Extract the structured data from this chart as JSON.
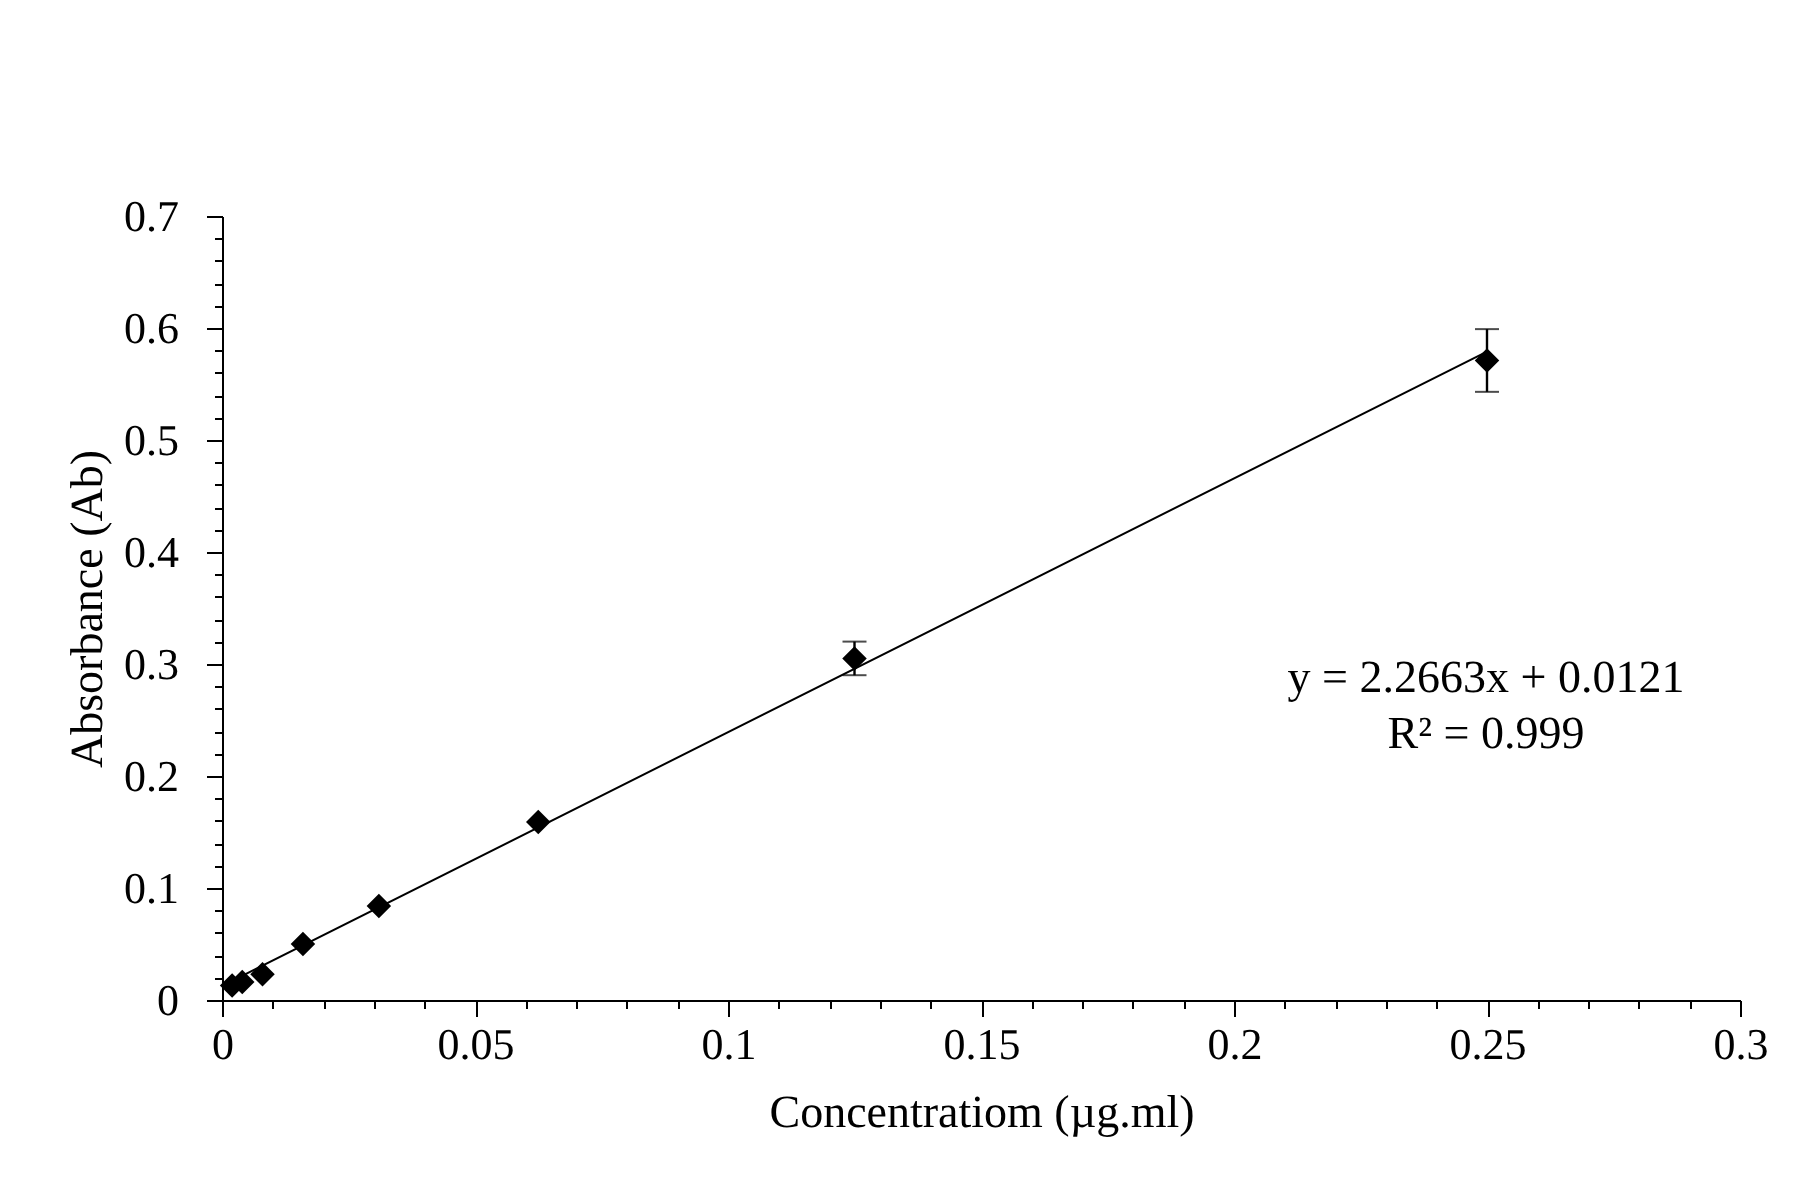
{
  "chart_data": {
    "type": "scatter",
    "xlabel": "Concentratiom (µg.ml)",
    "ylabel": "Absorbance (Ab)",
    "annotations": [
      "y = 2.2663x + 0.0121",
      "R² = 0.999"
    ],
    "xlim": [
      0,
      0.3
    ],
    "ylim": [
      0,
      0.7
    ],
    "xticks": [
      0,
      {
        "value": 0.01,
        "label": null
      },
      {
        "value": 0.02,
        "label": null
      },
      {
        "value": 0.03,
        "label": null
      },
      {
        "value": 0.04,
        "label": null
      },
      0.05,
      {
        "value": 0.06,
        "label": null
      },
      {
        "value": 0.07,
        "label": null
      },
      {
        "value": 0.08,
        "label": null
      },
      {
        "value": 0.09,
        "label": null
      },
      0.1,
      {
        "value": 0.11,
        "label": null
      },
      {
        "value": 0.12,
        "label": null
      },
      {
        "value": 0.13,
        "label": null
      },
      {
        "value": 0.14,
        "label": null
      },
      0.15,
      {
        "value": 0.16,
        "label": null
      },
      {
        "value": 0.17,
        "label": null
      },
      {
        "value": 0.18,
        "label": null
      },
      {
        "value": 0.19,
        "label": null
      },
      0.2,
      {
        "value": 0.21,
        "label": null
      },
      {
        "value": 0.22,
        "label": null
      },
      {
        "value": 0.23,
        "label": null
      },
      {
        "value": 0.24,
        "label": null
      },
      0.25,
      {
        "value": 0.26,
        "label": null
      },
      {
        "value": 0.27,
        "label": null
      },
      {
        "value": 0.28,
        "label": null
      },
      {
        "value": 0.29,
        "label": null
      },
      0.3
    ],
    "yticks": [
      0,
      {
        "value": 0.02,
        "label": null
      },
      {
        "value": 0.04,
        "label": null
      },
      {
        "value": 0.06,
        "label": null
      },
      {
        "value": 0.08,
        "label": null
      },
      0.1,
      {
        "value": 0.12,
        "label": null
      },
      {
        "value": 0.14,
        "label": null
      },
      {
        "value": 0.16,
        "label": null
      },
      {
        "value": 0.18,
        "label": null
      },
      0.2,
      {
        "value": 0.22,
        "label": null
      },
      {
        "value": 0.24,
        "label": null
      },
      {
        "value": 0.26,
        "label": null
      },
      {
        "value": 0.28,
        "label": null
      },
      0.3,
      {
        "value": 0.32,
        "label": null
      },
      {
        "value": 0.34,
        "label": null
      },
      {
        "value": 0.36,
        "label": null
      },
      {
        "value": 0.38,
        "label": null
      },
      0.4,
      {
        "value": 0.42,
        "label": null
      },
      {
        "value": 0.44,
        "label": null
      },
      {
        "value": 0.46,
        "label": null
      },
      {
        "value": 0.48,
        "label": null
      },
      0.5,
      {
        "value": 0.52,
        "label": null
      },
      {
        "value": 0.54,
        "label": null
      },
      {
        "value": 0.56,
        "label": null
      },
      {
        "value": 0.58,
        "label": null
      },
      0.6,
      {
        "value": 0.62,
        "label": null
      },
      {
        "value": 0.64,
        "label": null
      },
      {
        "value": 0.66,
        "label": null
      },
      {
        "value": 0.68,
        "label": null
      },
      0.7
    ],
    "marker": "diamond",
    "series": [
      {
        "color": "#000000",
        "x": [
          0.002,
          0.004,
          0.008,
          0.016,
          0.031,
          0.0625,
          0.125,
          0.25
        ],
        "values": [
          0.013,
          0.016,
          0.023,
          0.05,
          0.084,
          0.159,
          0.305,
          0.571
        ],
        "errors": [
          null,
          null,
          null,
          null,
          null,
          null,
          0.015,
          0.028
        ]
      },
      {
        "type": "line",
        "color": "#000000",
        "marker": "none",
        "line_style": "solid",
        "x": [
          0.002,
          0.25
        ],
        "values": [
          0.017,
          0.579
        ]
      }
    ]
  }
}
